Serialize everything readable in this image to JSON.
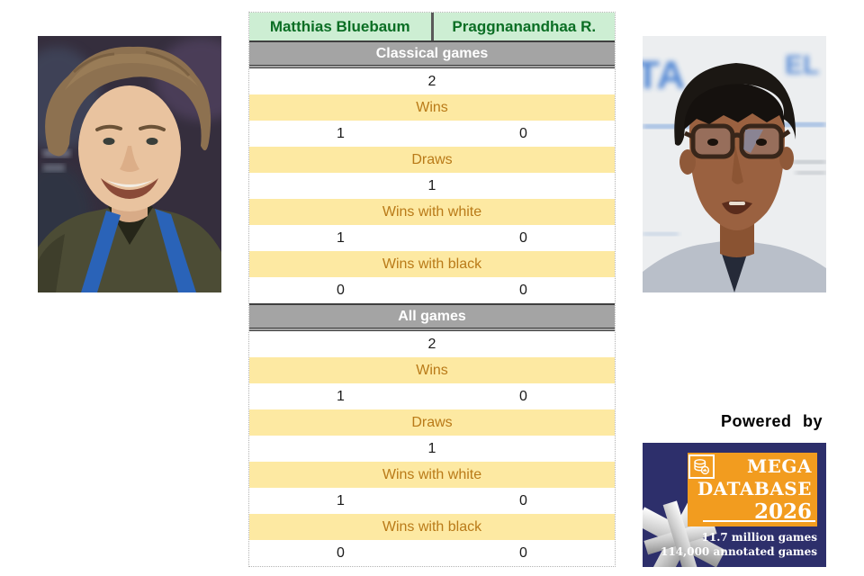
{
  "players": {
    "left": "Matthias Bluebaum",
    "right": "Praggnanandhaa R."
  },
  "sections": [
    {
      "title": "Classical games",
      "rows": [
        {
          "type": "total",
          "value": "2"
        },
        {
          "type": "label",
          "text": "Wins"
        },
        {
          "type": "pair",
          "left": "1",
          "right": "0"
        },
        {
          "type": "label",
          "text": "Draws"
        },
        {
          "type": "total",
          "value": "1"
        },
        {
          "type": "label",
          "text": "Wins with white"
        },
        {
          "type": "pair",
          "left": "1",
          "right": "0"
        },
        {
          "type": "label",
          "text": "Wins with black"
        },
        {
          "type": "pair",
          "left": "0",
          "right": "0"
        }
      ]
    },
    {
      "title": "All games",
      "rows": [
        {
          "type": "total",
          "value": "2"
        },
        {
          "type": "label",
          "text": "Wins"
        },
        {
          "type": "pair",
          "left": "1",
          "right": "0"
        },
        {
          "type": "label",
          "text": "Draws"
        },
        {
          "type": "total",
          "value": "1"
        },
        {
          "type": "label",
          "text": "Wins with white"
        },
        {
          "type": "pair",
          "left": "1",
          "right": "0"
        },
        {
          "type": "label",
          "text": "Wins with black"
        },
        {
          "type": "pair",
          "left": "0",
          "right": "0"
        }
      ]
    }
  ],
  "powered_by_label": "Powered by",
  "logo": {
    "icon": "database-icon",
    "line1": "MEGA",
    "line2": "DATABASE",
    "line3": "2026",
    "stat1": "11.7 million games",
    "stat2": "114,000 annotated games"
  },
  "colors": {
    "header_bg": "#cdeed3",
    "header_text": "#0b6e24",
    "band_bg": "#a4a4a4",
    "band_text": "#ffffff",
    "label_bg": "#fde9a2",
    "label_text": "#b97a18",
    "logo_navy": "#2d2f6b",
    "logo_orange": "#f29c1f"
  },
  "chart_data": {
    "type": "table",
    "title": "Head-to-head score: Matthias Bluebaum vs Praggnanandhaa R.",
    "columns": [
      "Matthias Bluebaum",
      "Praggnanandhaa R."
    ],
    "sections": [
      {
        "name": "Classical games",
        "games": 2,
        "wins": [
          1,
          0
        ],
        "draws": 1,
        "wins_with_white": [
          1,
          0
        ],
        "wins_with_black": [
          0,
          0
        ]
      },
      {
        "name": "All games",
        "games": 2,
        "wins": [
          1,
          0
        ],
        "draws": 1,
        "wins_with_white": [
          1,
          0
        ],
        "wins_with_black": [
          0,
          0
        ]
      }
    ]
  }
}
